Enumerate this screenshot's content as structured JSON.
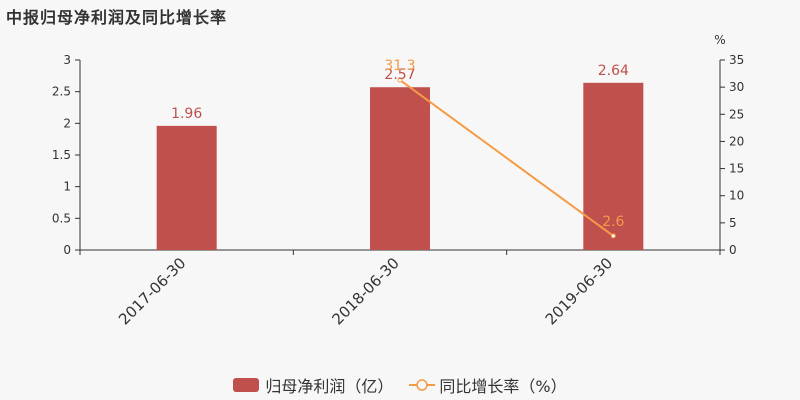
{
  "chart_data": {
    "type": "bar",
    "title": "中报归母净利润及同比增长率",
    "categories": [
      "2017-06-30",
      "2018-06-30",
      "2019-06-30"
    ],
    "series": [
      {
        "name": "归母净利润（亿）",
        "type": "bar",
        "axis": "left",
        "values": [
          1.96,
          2.57,
          2.64
        ],
        "labels": [
          "1.96",
          "2.57",
          "2.64"
        ],
        "color": "#c0504d"
      },
      {
        "name": "同比增长率（%）",
        "type": "line",
        "axis": "right",
        "values": [
          null,
          31.3,
          2.6
        ],
        "labels": [
          "",
          "31.3",
          "2.6"
        ],
        "color": "#f59a46"
      }
    ],
    "y_left": {
      "range": [
        0,
        3
      ],
      "ticks": [
        "0",
        "0.5",
        "1",
        "1.5",
        "2",
        "2.5",
        "3"
      ]
    },
    "y_right": {
      "unit": "%",
      "range": [
        0,
        35
      ],
      "ticks": [
        "0",
        "5",
        "10",
        "15",
        "20",
        "25",
        "30",
        "35"
      ]
    },
    "grid": false,
    "legend_position": "bottom-center"
  }
}
